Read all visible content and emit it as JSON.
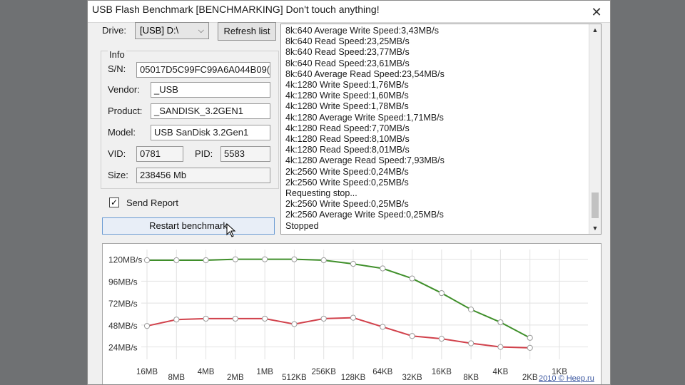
{
  "window": {
    "title": "USB Flash Benchmark [BENCHMARKING] Don't touch anything!",
    "close_glyph": "✕"
  },
  "drive": {
    "label": "Drive:",
    "selected": "[USB] D:\\",
    "refresh_label": "Refresh list"
  },
  "info": {
    "group_label": "Info",
    "sn_label": "S/N:",
    "sn": "05017D5C99FC99A6A044B09(",
    "vendor_label": "Vendor:",
    "vendor": "_USB",
    "product_label": "Product:",
    "product": "_SANDISK_3.2GEN1",
    "model_label": "Model:",
    "model": "USB  SanDisk 3.2Gen1",
    "vid_label": "VID:",
    "vid": "0781",
    "pid_label": "PID:",
    "pid": "5583",
    "size_label": "Size:",
    "size": "238456 Mb"
  },
  "send_report": {
    "label": "Send Report",
    "checked": true
  },
  "restart_label": "Restart benchmark",
  "log": [
    "8k:640 Average Write Speed:3,43MB/s",
    "8k:640 Read Speed:23,25MB/s",
    "8k:640 Read Speed:23,77MB/s",
    "8k:640 Read Speed:23,61MB/s",
    "8k:640 Average Read Speed:23,54MB/s",
    "4k:1280 Write Speed:1,76MB/s",
    "4k:1280 Write Speed:1,60MB/s",
    "4k:1280 Write Speed:1,78MB/s",
    "4k:1280 Average Write Speed:1,71MB/s",
    "4k:1280 Read Speed:7,70MB/s",
    "4k:1280 Read Speed:8,10MB/s",
    "4k:1280 Read Speed:8,01MB/s",
    "4k:1280 Average Read Speed:7,93MB/s",
    "2k:2560 Write Speed:0,24MB/s",
    "2k:2560 Write Speed:0,25MB/s",
    "Requesting stop...",
    "2k:2560 Write Speed:0,25MB/s",
    "2k:2560 Average Write Speed:0,25MB/s",
    "Stopped"
  ],
  "chart_data": {
    "type": "line",
    "y_ticks": [
      "120MB/s",
      "96MB/s",
      "72MB/s",
      "48MB/s",
      "24MB/s"
    ],
    "y_tick_values": [
      120,
      96,
      72,
      48,
      24
    ],
    "ylim": [
      12,
      126
    ],
    "categories": [
      "16MB",
      "8MB",
      "4MB",
      "2MB",
      "1MB",
      "512KB",
      "256KB",
      "128KB",
      "64KB",
      "32KB",
      "16KB",
      "8KB",
      "4KB",
      "2KB",
      "1KB"
    ],
    "series": [
      {
        "color": "#3f8f2a",
        "values": [
          119,
          119,
          119,
          120,
          120,
          120,
          119,
          115,
          110,
          99,
          83,
          65,
          51,
          34,
          null
        ]
      },
      {
        "color": "#d1414b",
        "values": [
          47,
          54,
          55,
          55,
          55,
          49,
          55,
          56,
          46,
          36,
          33,
          28,
          24,
          23,
          null
        ]
      }
    ],
    "grid": true
  },
  "credit": "2010 © Heep.ru"
}
